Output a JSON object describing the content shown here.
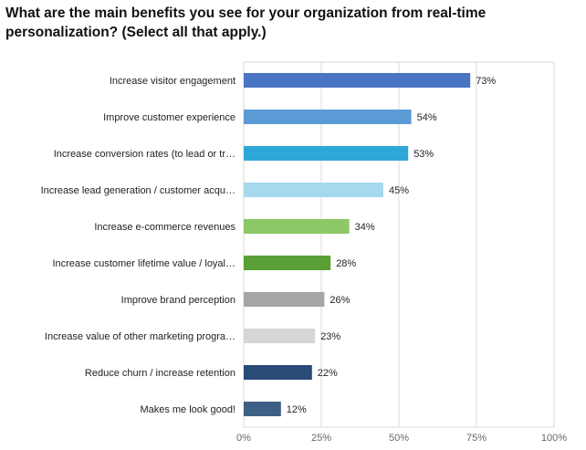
{
  "title": "What are the main benefits you see for your organization from real-time personalization? (Select all that apply.)",
  "chart_data": {
    "type": "bar",
    "orientation": "horizontal",
    "title": "What are the main benefits you see for your organization from real-time personalization? (Select all that apply.)",
    "categories": [
      "Increase visitor engagement",
      "Improve customer experience",
      "Increase conversion rates (to lead or tr…",
      "Increase lead generation / customer acqu…",
      "Increase e-commerce revenues",
      "Increase customer lifetime value / loyal…",
      "Improve brand perception",
      "Increase value of other marketing progra…",
      "Reduce churn / increase retention",
      "Makes me look good!"
    ],
    "values": [
      73,
      54,
      53,
      45,
      34,
      28,
      26,
      23,
      22,
      12
    ],
    "value_labels": [
      "73%",
      "54%",
      "53%",
      "45%",
      "34%",
      "28%",
      "26%",
      "23%",
      "22%",
      "12%"
    ],
    "colors": [
      "#4a74c4",
      "#5b9bd5",
      "#2ea8d8",
      "#a6d8ee",
      "#8cc866",
      "#5a9e36",
      "#a6a6a6",
      "#d6d6d6",
      "#2a4a78",
      "#3e6085"
    ],
    "xlim": [
      0,
      100
    ],
    "ticks": [
      0,
      25,
      50,
      75,
      100
    ],
    "tick_labels": [
      "0%",
      "25%",
      "50%",
      "75%",
      "100%"
    ],
    "xlabel": "",
    "ylabel": "",
    "grid": true,
    "grid_color": "#d9d9d9"
  }
}
